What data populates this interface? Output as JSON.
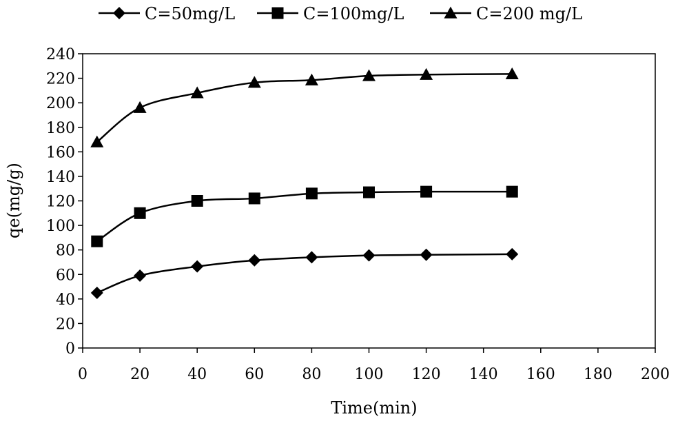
{
  "chart_data": {
    "type": "line",
    "xlabel": "Time(min)",
    "ylabel": "qe(mg/g)",
    "xlim": [
      0,
      200
    ],
    "ylim": [
      0,
      240
    ],
    "xticks": [
      0,
      20,
      40,
      60,
      80,
      100,
      120,
      140,
      160,
      180,
      200
    ],
    "yticks": [
      0,
      20,
      40,
      60,
      80,
      100,
      120,
      140,
      160,
      180,
      200,
      220,
      240
    ],
    "grid": false,
    "legend_position": "top",
    "x": [
      5,
      20,
      40,
      60,
      80,
      100,
      120,
      150
    ],
    "series": [
      {
        "name": "C=50mg/L",
        "marker": "diamond",
        "values": [
          45,
          59,
          66.5,
          71.5,
          74,
          75.5,
          76,
          76.5
        ]
      },
      {
        "name": "C=100mg/L",
        "marker": "square",
        "values": [
          87,
          110,
          120,
          122,
          126,
          127,
          127.5,
          127.5
        ]
      },
      {
        "name": "C=200 mg/L",
        "marker": "triangle",
        "values": [
          168,
          196,
          208,
          216.5,
          218.5,
          222,
          223,
          223.5
        ]
      }
    ],
    "line_color": "#000000"
  }
}
